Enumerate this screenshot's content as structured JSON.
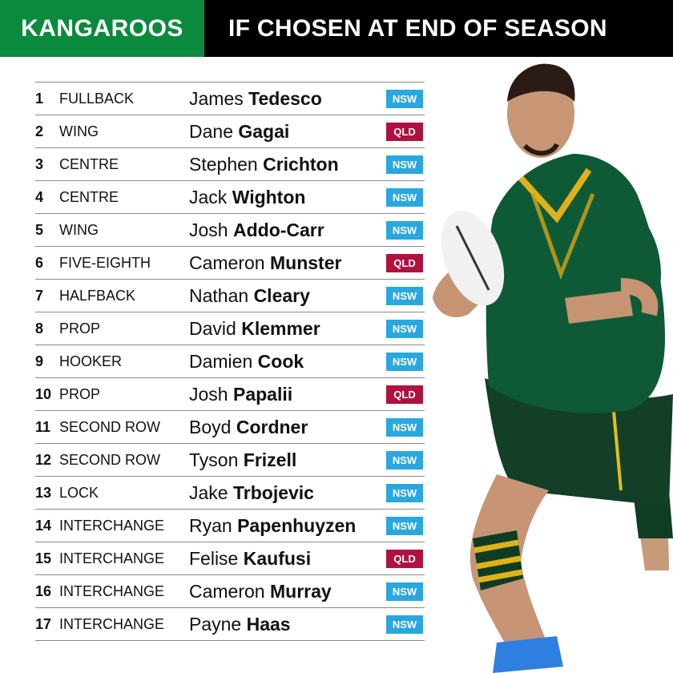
{
  "header": {
    "team": "KANGAROOS",
    "title": "IF CHOSEN AT END OF SEASON"
  },
  "colors": {
    "team_bg": "#0a8a3c",
    "title_bg": "#000000",
    "NSW": "#2aa7df",
    "QLD": "#b0123f"
  },
  "players": [
    {
      "num": "1",
      "position": "FULLBACK",
      "first": "James",
      "last": "Tedesco",
      "state": "NSW"
    },
    {
      "num": "2",
      "position": "WING",
      "first": "Dane",
      "last": "Gagai",
      "state": "QLD"
    },
    {
      "num": "3",
      "position": "CENTRE",
      "first": "Stephen",
      "last": "Crichton",
      "state": "NSW"
    },
    {
      "num": "4",
      "position": "CENTRE",
      "first": "Jack",
      "last": "Wighton",
      "state": "NSW"
    },
    {
      "num": "5",
      "position": "WING",
      "first": "Josh",
      "last": "Addo-Carr",
      "state": "NSW"
    },
    {
      "num": "6",
      "position": "FIVE-EIGHTH",
      "first": "Cameron",
      "last": "Munster",
      "state": "QLD"
    },
    {
      "num": "7",
      "position": "HALFBACK",
      "first": "Nathan",
      "last": "Cleary",
      "state": "NSW"
    },
    {
      "num": "8",
      "position": "PROP",
      "first": "David",
      "last": "Klemmer",
      "state": "NSW"
    },
    {
      "num": "9",
      "position": "HOOKER",
      "first": "Damien",
      "last": "Cook",
      "state": "NSW"
    },
    {
      "num": "10",
      "position": "PROP",
      "first": "Josh",
      "last": "Papalii",
      "state": "QLD"
    },
    {
      "num": "11",
      "position": "SECOND ROW",
      "first": "Boyd",
      "last": "Cordner",
      "state": "NSW"
    },
    {
      "num": "12",
      "position": "SECOND ROW",
      "first": "Tyson",
      "last": "Frizell",
      "state": "NSW"
    },
    {
      "num": "13",
      "position": "LOCK",
      "first": "Jake",
      "last": "Trbojevic",
      "state": "NSW"
    },
    {
      "num": "14",
      "position": "INTERCHANGE",
      "first": "Ryan",
      "last": "Papenhuyzen",
      "state": "NSW"
    },
    {
      "num": "15",
      "position": "INTERCHANGE",
      "first": "Felise",
      "last": "Kaufusi",
      "state": "QLD"
    },
    {
      "num": "16",
      "position": "INTERCHANGE",
      "first": "Cameron",
      "last": "Murray",
      "state": "NSW"
    },
    {
      "num": "17",
      "position": "INTERCHANGE",
      "first": "Payne",
      "last": "Haas",
      "state": "NSW"
    }
  ]
}
